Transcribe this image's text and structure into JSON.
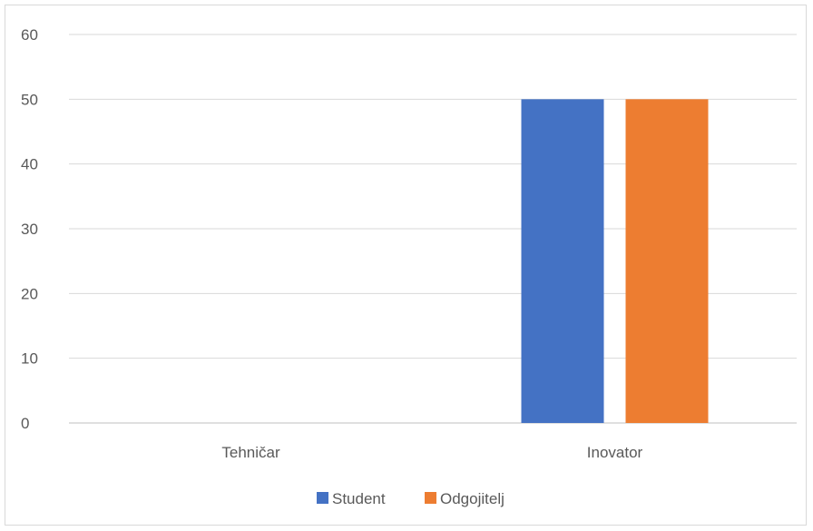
{
  "chart_data": {
    "type": "bar",
    "categories": [
      "Tehničar",
      "Inovator"
    ],
    "series": [
      {
        "name": "Student",
        "values": [
          0,
          50
        ],
        "color": "#4472c4"
      },
      {
        "name": "Odgojitelj",
        "values": [
          0,
          50
        ],
        "color": "#ed7d31"
      }
    ],
    "ylim": [
      0,
      60
    ],
    "yticks": [
      0,
      10,
      20,
      30,
      40,
      50,
      60
    ],
    "grid": true,
    "legend": "bottom"
  }
}
